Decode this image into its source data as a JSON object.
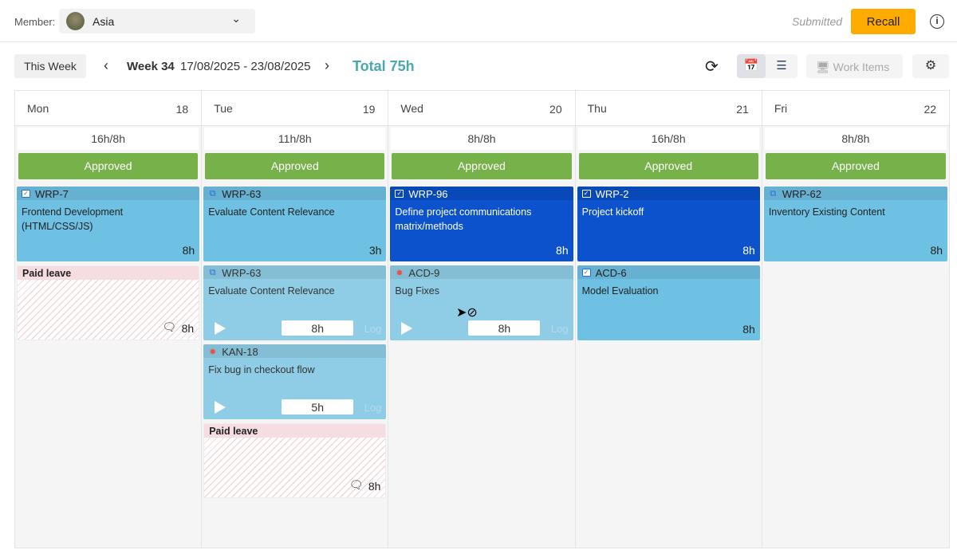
{
  "header": {
    "member_label": "Member:",
    "member_name": "Asia",
    "status": "Submitted",
    "recall_label": "Recall"
  },
  "toolbar": {
    "this_week": "This Week",
    "week": "Week 34",
    "range": "17/08/2025 - 23/08/2025",
    "total": "Total 75h",
    "work_items": "Work Items"
  },
  "colors": {
    "approved": "#77b14a",
    "recall": "#ffab00",
    "total": "#4aa8b0",
    "card": "#6fc1e3",
    "card_selected": "#0b52cc"
  },
  "days": [
    {
      "name": "Mon",
      "num": "18",
      "hours": "16h/8h",
      "status": "Approved",
      "cards": [
        {
          "style": "normal",
          "icon": "task",
          "key": "WRP-7",
          "title": "Frontend Development (HTML/CSS/JS)",
          "duration": "8h"
        },
        {
          "style": "leave",
          "key": "Paid leave",
          "duration": "8h"
        }
      ]
    },
    {
      "name": "Tue",
      "num": "19",
      "hours": "11h/8h",
      "status": "Approved",
      "cards": [
        {
          "style": "normal",
          "icon": "sub",
          "key": "WRP-63",
          "title": "Evaluate Content Relevance",
          "duration": "3h"
        },
        {
          "style": "light",
          "icon": "sub",
          "key": "WRP-63",
          "title": "Evaluate Content Relevance",
          "duration": "8h",
          "log": "Log"
        },
        {
          "style": "light",
          "icon": "bug",
          "key": "KAN-18",
          "title": "Fix bug in checkout flow",
          "duration": "5h",
          "log": "Log"
        },
        {
          "style": "leave",
          "key": "Paid leave",
          "duration": "8h"
        }
      ]
    },
    {
      "name": "Wed",
      "num": "20",
      "hours": "8h/8h",
      "status": "Approved",
      "cards": [
        {
          "style": "dark",
          "icon": "task",
          "key": "WRP-96",
          "title": "Define project communications matrix/methods",
          "duration": "8h"
        },
        {
          "style": "light",
          "icon": "bug",
          "key": "ACD-9",
          "title": "Bug Fixes",
          "duration": "8h",
          "log": "Log"
        }
      ]
    },
    {
      "name": "Thu",
      "num": "21",
      "hours": "16h/8h",
      "status": "Approved",
      "cards": [
        {
          "style": "dark",
          "icon": "task",
          "key": "WRP-2",
          "title": "Project kickoff",
          "duration": "8h"
        },
        {
          "style": "normal",
          "icon": "task",
          "key": "ACD-6",
          "title": "Model Evaluation",
          "duration": "8h"
        }
      ]
    },
    {
      "name": "Fri",
      "num": "22",
      "hours": "8h/8h",
      "status": "Approved",
      "cards": [
        {
          "style": "normal",
          "icon": "sub",
          "key": "WRP-62",
          "title": "Inventory Existing Content",
          "duration": "8h"
        }
      ]
    }
  ]
}
